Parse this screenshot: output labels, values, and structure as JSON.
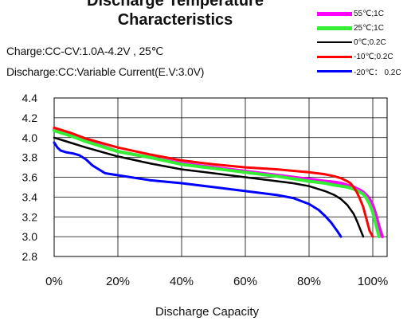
{
  "chart_data": {
    "type": "line",
    "title_line1": "Discharge Temperature",
    "title_line2": "Characteristics",
    "condition_charge": "Charge:CC-CV:1.0A-4.2V    , 25℃",
    "condition_discharge": "Discharge:CC:Variable Current(E.V:3.0V)",
    "xlabel": "Discharge Capacity",
    "ylabel": "",
    "xlim": [
      0,
      100
    ],
    "ylim": [
      2.8,
      4.4
    ],
    "x_ticks": [
      "0%",
      "20%",
      "40%",
      "60%",
      "80%",
      "100%"
    ],
    "y_ticks": [
      "4.4",
      "4.2",
      "4.0",
      "3.8",
      "3.6",
      "3.4",
      "3.2",
      "3.0",
      "2.8"
    ],
    "grid": true,
    "legend_position": "top-right",
    "series": [
      {
        "name": "55℃;1C",
        "color": "#ff00ff",
        "width": 4,
        "x": [
          0,
          5,
          10,
          20,
          30,
          40,
          50,
          60,
          70,
          80,
          85,
          88,
          90,
          92,
          94,
          96,
          97,
          98,
          99,
          100,
          101,
          102,
          103
        ],
        "y": [
          4.08,
          4.03,
          3.97,
          3.86,
          3.8,
          3.74,
          3.7,
          3.66,
          3.62,
          3.58,
          3.56,
          3.55,
          3.54,
          3.52,
          3.5,
          3.47,
          3.45,
          3.42,
          3.38,
          3.32,
          3.22,
          3.1,
          3.0
        ]
      },
      {
        "name": "25℃;1C",
        "color": "#33ee33",
        "width": 4,
        "x": [
          0,
          5,
          10,
          20,
          30,
          40,
          50,
          60,
          70,
          80,
          85,
          88,
          90,
          92,
          94,
          96,
          97,
          98,
          99,
          100,
          101,
          102
        ],
        "y": [
          4.07,
          4.02,
          3.96,
          3.86,
          3.8,
          3.73,
          3.69,
          3.65,
          3.61,
          3.56,
          3.54,
          3.52,
          3.51,
          3.5,
          3.48,
          3.45,
          3.43,
          3.39,
          3.33,
          3.25,
          3.12,
          3.0
        ]
      },
      {
        "name": "0℃;0.2C",
        "color": "#000000",
        "width": 2.5,
        "x": [
          0,
          3,
          5,
          10,
          20,
          30,
          40,
          50,
          60,
          70,
          75,
          80,
          85,
          88,
          90,
          92,
          94,
          95,
          96,
          97
        ],
        "y": [
          4.0,
          3.97,
          3.95,
          3.9,
          3.81,
          3.74,
          3.68,
          3.64,
          3.6,
          3.56,
          3.54,
          3.51,
          3.46,
          3.42,
          3.38,
          3.32,
          3.23,
          3.16,
          3.08,
          3.0
        ]
      },
      {
        "name": "-10℃;0.2C",
        "color": "#ff0000",
        "width": 3,
        "x": [
          0,
          5,
          10,
          20,
          30,
          40,
          50,
          60,
          70,
          80,
          85,
          88,
          90,
          92,
          93,
          94,
          95,
          96,
          97,
          98,
          99,
          100
        ],
        "y": [
          4.1,
          4.05,
          3.99,
          3.9,
          3.83,
          3.77,
          3.73,
          3.7,
          3.68,
          3.65,
          3.63,
          3.61,
          3.59,
          3.56,
          3.54,
          3.5,
          3.45,
          3.38,
          3.3,
          3.18,
          3.06,
          3.0
        ]
      },
      {
        "name": "-20℃： 0.2C",
        "color": "#0000ff",
        "width": 3,
        "x": [
          0,
          1,
          2,
          4,
          6,
          8,
          10,
          12,
          14,
          16,
          20,
          30,
          40,
          50,
          60,
          70,
          75,
          80,
          83,
          85,
          87,
          89,
          90
        ],
        "y": [
          3.95,
          3.9,
          3.87,
          3.85,
          3.84,
          3.82,
          3.78,
          3.72,
          3.68,
          3.64,
          3.62,
          3.57,
          3.54,
          3.5,
          3.46,
          3.42,
          3.39,
          3.33,
          3.27,
          3.21,
          3.14,
          3.05,
          3.0
        ]
      }
    ]
  }
}
